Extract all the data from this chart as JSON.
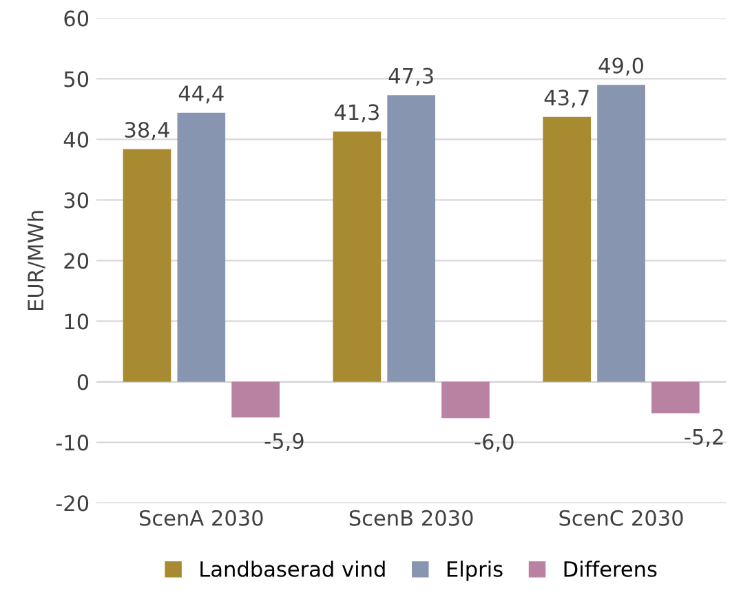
{
  "chart_data": {
    "type": "bar",
    "ylabel": "EUR/MWh",
    "categories": [
      "ScenA 2030",
      "ScenB 2030",
      "ScenC 2030"
    ],
    "series": [
      {
        "name": "Landbaserad vind",
        "color": "#a88a30",
        "values": [
          38.4,
          41.3,
          43.7
        ],
        "value_labels": [
          "38,4",
          "41,3",
          "43,7"
        ]
      },
      {
        "name": "Elpris",
        "color": "#8795b0",
        "values": [
          44.4,
          47.3,
          49.0
        ],
        "value_labels": [
          "44,4",
          "47,3",
          "49,0"
        ]
      },
      {
        "name": "Differens",
        "color": "#b981a2",
        "values": [
          -5.9,
          -6.0,
          -5.2
        ],
        "value_labels": [
          "-5,9",
          "-6,0",
          "-5,2"
        ]
      }
    ],
    "ylim": [
      -20,
      60
    ],
    "yticks": [
      -20,
      -10,
      0,
      10,
      20,
      30,
      40,
      50,
      60
    ],
    "grid": "y",
    "legend": "bottom"
  }
}
